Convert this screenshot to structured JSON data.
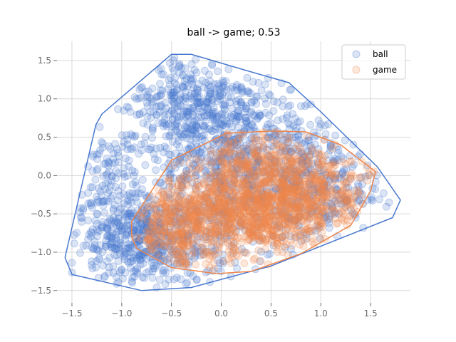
{
  "chart_data": {
    "type": "scatter",
    "title": "ball -> game; 0.53",
    "xlabel": "",
    "ylabel": "",
    "xlim": [
      -1.65,
      1.9
    ],
    "ylim": [
      -1.66,
      1.75
    ],
    "xticks": [
      -1.5,
      -1.0,
      -0.5,
      0.0,
      0.5,
      1.0,
      1.5
    ],
    "xtick_labels": [
      "−1.5",
      "−1.0",
      "−0.5",
      "0.0",
      "0.5",
      "1.0",
      "1.5"
    ],
    "yticks": [
      -1.5,
      -1.0,
      -0.5,
      0.0,
      0.5,
      1.0,
      1.5
    ],
    "ytick_labels": [
      "−1.5",
      "−1.0",
      "−0.5",
      "0.0",
      "0.5",
      "1.0",
      "1.5"
    ],
    "grid": true,
    "legend_position": "top-right",
    "series": [
      {
        "name": "ball",
        "color": "#4878cf",
        "hull": [
          [
            -1.57,
            -1.07
          ],
          [
            -1.5,
            -1.29
          ],
          [
            -0.8,
            -1.5
          ],
          [
            -0.3,
            -1.46
          ],
          [
            0.5,
            -1.18
          ],
          [
            1.72,
            -0.55
          ],
          [
            1.8,
            -0.32
          ],
          [
            1.57,
            0.11
          ],
          [
            1.0,
            0.83
          ],
          [
            0.68,
            1.21
          ],
          [
            0.25,
            1.37
          ],
          [
            -0.3,
            1.58
          ],
          [
            -0.5,
            1.58
          ],
          [
            -1.2,
            0.8
          ],
          [
            -1.26,
            0.66
          ]
        ],
        "clusters": [
          {
            "cx": 0.1,
            "cy": 0.2,
            "sx": 0.6,
            "sy": 0.55,
            "n": 900
          },
          {
            "cx": -0.7,
            "cy": -0.9,
            "sx": 0.4,
            "sy": 0.3,
            "n": 450
          },
          {
            "cx": 0.9,
            "cy": -0.2,
            "sx": 0.35,
            "sy": 0.35,
            "n": 250
          },
          {
            "cx": -0.3,
            "cy": 1.0,
            "sx": 0.35,
            "sy": 0.3,
            "n": 250
          },
          {
            "cx": -1.1,
            "cy": -0.4,
            "sx": 0.2,
            "sy": 0.45,
            "n": 150
          }
        ]
      },
      {
        "name": "game",
        "color": "#ee854a",
        "hull": [
          [
            -0.9,
            -0.8
          ],
          [
            -0.85,
            -0.95
          ],
          [
            -0.5,
            -1.2
          ],
          [
            -0.05,
            -1.28
          ],
          [
            0.3,
            -1.25
          ],
          [
            0.8,
            -1.02
          ],
          [
            1.3,
            -0.65
          ],
          [
            1.5,
            -0.2
          ],
          [
            1.55,
            0.05
          ],
          [
            1.2,
            0.4
          ],
          [
            0.85,
            0.57
          ],
          [
            0.5,
            0.58
          ],
          [
            0.05,
            0.55
          ],
          [
            -0.5,
            0.2
          ],
          [
            -0.7,
            -0.2
          ],
          [
            -0.9,
            -0.6
          ]
        ],
        "clusters": [
          {
            "cx": 0.25,
            "cy": -0.45,
            "sx": 0.45,
            "sy": 0.3,
            "n": 1000
          },
          {
            "cx": 0.9,
            "cy": -0.2,
            "sx": 0.3,
            "sy": 0.3,
            "n": 300
          },
          {
            "cx": -0.4,
            "cy": -0.7,
            "sx": 0.25,
            "sy": 0.25,
            "n": 250
          },
          {
            "cx": 0.4,
            "cy": 0.2,
            "sx": 0.3,
            "sy": 0.2,
            "n": 200
          }
        ]
      }
    ]
  }
}
